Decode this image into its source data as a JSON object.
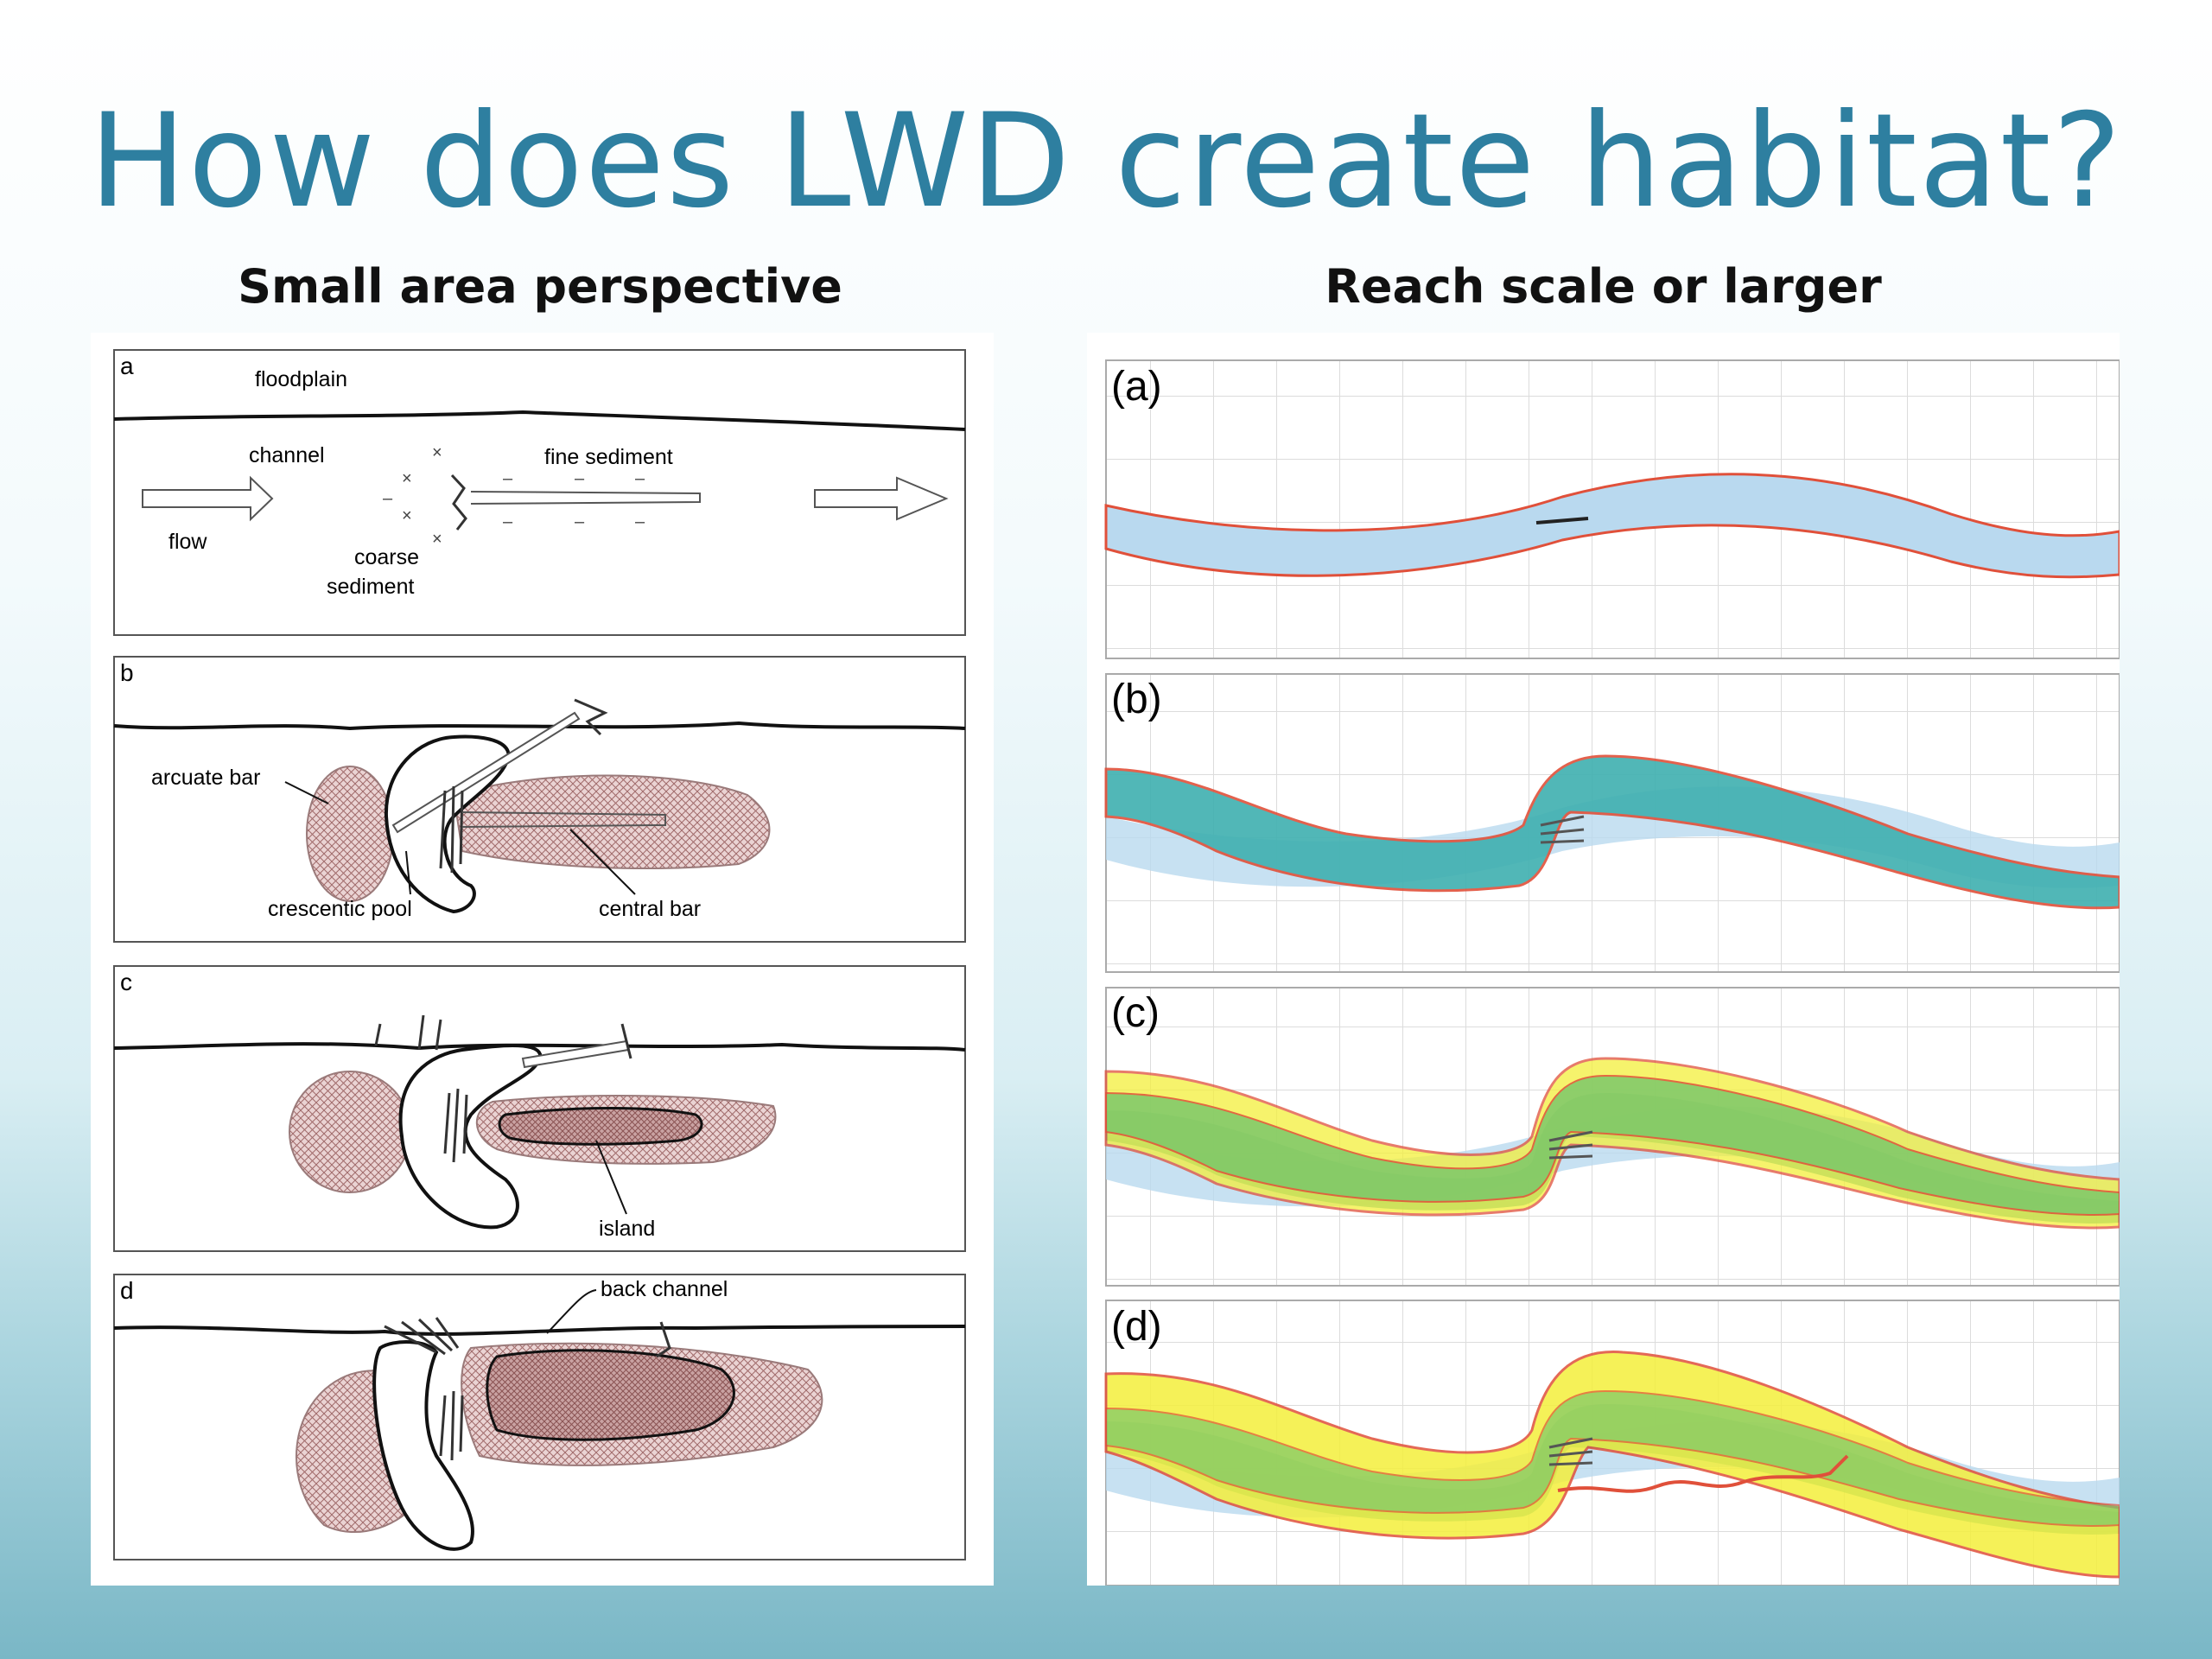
{
  "title": "How does LWD create habitat?",
  "left": {
    "heading": "Small area perspective",
    "panels": {
      "a": {
        "letter": "a",
        "floodplain": "floodplain",
        "channel": "channel",
        "fine_sediment": "fine sediment",
        "flow": "flow",
        "coarse": "coarse",
        "sediment": "sediment"
      },
      "b": {
        "letter": "b",
        "arcuate_bar": "arcuate bar",
        "crescentic_pool": "crescentic pool",
        "central_bar": "central bar"
      },
      "c": {
        "letter": "c",
        "island": "island"
      },
      "d": {
        "letter": "d",
        "back_channel": "back channel"
      }
    }
  },
  "right": {
    "heading": "Reach scale or larger",
    "panels": [
      "(a)",
      "(b)",
      "(c)",
      "(d)"
    ]
  },
  "colors": {
    "title": "#2e7fa0",
    "water_blue": "#b9d9ef",
    "teal": "#3fb0b0",
    "green": "#7cc86a",
    "yellow": "#f4ef3c",
    "bank_red": "#e0503a",
    "bar_fill": "#e8cfcf"
  }
}
